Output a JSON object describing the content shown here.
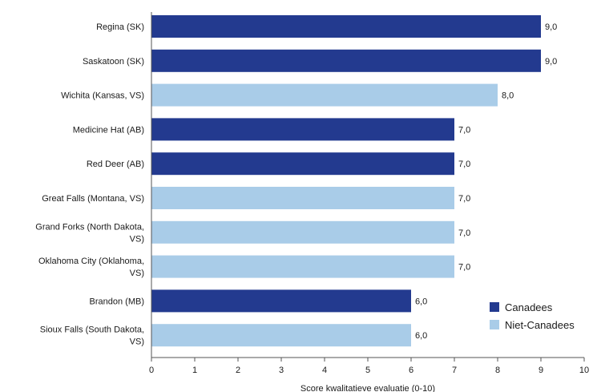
{
  "chart_data": {
    "type": "bar",
    "orientation": "horizontal",
    "xlabel": "Score kwalitatieve evaluatie (0-10)",
    "xlim": [
      0,
      10
    ],
    "xticks": [
      "0",
      "1",
      "2",
      "3",
      "4",
      "5",
      "6",
      "7",
      "8",
      "9",
      "10"
    ],
    "grid": false,
    "legend_position": "bottom-right",
    "legend": [
      {
        "key": "canadees",
        "label": "Canadees",
        "color": "#233a8f"
      },
      {
        "key": "niet",
        "label": "Niet-Canadees",
        "color": "#a9cce8"
      }
    ],
    "bars": [
      {
        "label_lines": [
          "Regina (SK)"
        ],
        "value": 9.0,
        "value_label": "9,0",
        "group": "canadees"
      },
      {
        "label_lines": [
          "Saskatoon (SK)"
        ],
        "value": 9.0,
        "value_label": "9,0",
        "group": "canadees"
      },
      {
        "label_lines": [
          "Wichita (Kansas, VS)"
        ],
        "value": 8.0,
        "value_label": "8,0",
        "group": "niet"
      },
      {
        "label_lines": [
          "Medicine Hat (AB)"
        ],
        "value": 7.0,
        "value_label": "7,0",
        "group": "canadees"
      },
      {
        "label_lines": [
          "Red Deer (AB)"
        ],
        "value": 7.0,
        "value_label": "7,0",
        "group": "canadees"
      },
      {
        "label_lines": [
          "Great Falls (Montana, VS)"
        ],
        "value": 7.0,
        "value_label": "7,0",
        "group": "niet"
      },
      {
        "label_lines": [
          "Grand Forks (North Dakota,",
          "VS)"
        ],
        "value": 7.0,
        "value_label": "7,0",
        "group": "niet"
      },
      {
        "label_lines": [
          "Oklahoma City (Oklahoma,",
          "VS)"
        ],
        "value": 7.0,
        "value_label": "7,0",
        "group": "niet"
      },
      {
        "label_lines": [
          "Brandon (MB)"
        ],
        "value": 6.0,
        "value_label": "6,0",
        "group": "canadees"
      },
      {
        "label_lines": [
          "Sioux Falls (South Dakota,",
          "VS)"
        ],
        "value": 6.0,
        "value_label": "6,0",
        "group": "niet"
      }
    ]
  }
}
